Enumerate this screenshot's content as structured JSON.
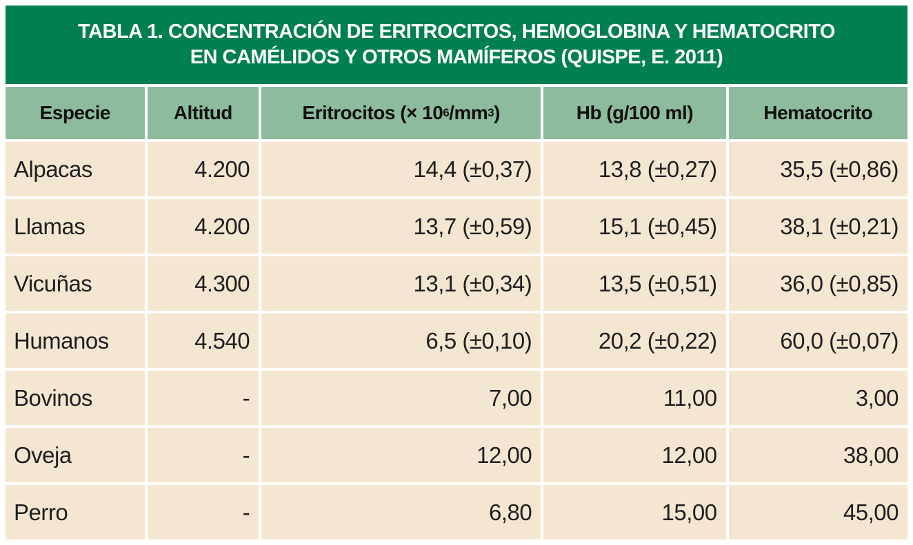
{
  "title": {
    "line1": "TABLA 1. CONCENTRACIÓN DE ERITROCITOS, HEMOGLOBINA Y HEMATOCRITO",
    "line2": "EN CAMÉLIDOS Y OTROS MAMÍFEROS (QUISPE, E. 2011)"
  },
  "colors": {
    "title_bar_bg": "#008050",
    "title_text": "#ffffff",
    "header_bg": "#8dbb9d",
    "header_text": "#101010",
    "row_bg": "#f5e6d2",
    "row_text": "#1f1f1f",
    "gap": "#ffffff"
  },
  "table": {
    "columns": [
      "Especie",
      "Altitud",
      "Eritrocitos (× 10⁶/mm³)",
      "Hb (g/100 ml)",
      "Hematocrito"
    ],
    "col3_parts": {
      "a": "Eritrocitos (× 10",
      "sup1": "6",
      "b": "/mm",
      "sup2": "3",
      "c": ")"
    },
    "rows": [
      [
        "Alpacas",
        "4.200",
        "14,4 (±0,37)",
        "13,8 (±0,27)",
        "35,5 (±0,86)"
      ],
      [
        "Llamas",
        "4.200",
        "13,7 (±0,59)",
        "15,1 (±0,45)",
        "38,1 (±0,21)"
      ],
      [
        "Vicuñas",
        "4.300",
        "13,1 (±0,34)",
        "13,5 (±0,51)",
        "36,0 (±0,85)"
      ],
      [
        "Humanos",
        "4.540",
        "6,5 (±0,10)",
        "20,2 (±0,22)",
        "60,0 (±0,07)"
      ],
      [
        "Bovinos",
        "-",
        "7,00",
        "11,00",
        "3,00"
      ],
      [
        "Oveja",
        "-",
        "12,00",
        "12,00",
        "38,00"
      ],
      [
        "Perro",
        "-",
        "6,80",
        "15,00",
        "45,00"
      ]
    ]
  },
  "chart_data": {
    "type": "table",
    "title": "TABLA 1. CONCENTRACIÓN DE ERITROCITOS, HEMOGLOBINA Y HEMATOCRITO EN CAMÉLIDOS Y OTROS MAMÍFEROS (QUISPE, E. 2011)",
    "columns": [
      "Especie",
      "Altitud",
      "Eritrocitos (× 10⁶/mm³)",
      "Hb (g/100 ml)",
      "Hematocrito"
    ],
    "rows": [
      [
        "Alpacas",
        "4.200",
        "14,4 (±0,37)",
        "13,8 (±0,27)",
        "35,5 (±0,86)"
      ],
      [
        "Llamas",
        "4.200",
        "13,7 (±0,59)",
        "15,1 (±0,45)",
        "38,1 (±0,21)"
      ],
      [
        "Vicuñas",
        "4.300",
        "13,1 (±0,34)",
        "13,5 (±0,51)",
        "36,0 (±0,85)"
      ],
      [
        "Humanos",
        "4.540",
        "6,5 (±0,10)",
        "20,2 (±0,22)",
        "60,0 (±0,07)"
      ],
      [
        "Bovinos",
        "-",
        "7,00",
        "11,00",
        "3,00"
      ],
      [
        "Oveja",
        "-",
        "12,00",
        "12,00",
        "38,00"
      ],
      [
        "Perro",
        "-",
        "6,80",
        "15,00",
        "45,00"
      ]
    ]
  }
}
